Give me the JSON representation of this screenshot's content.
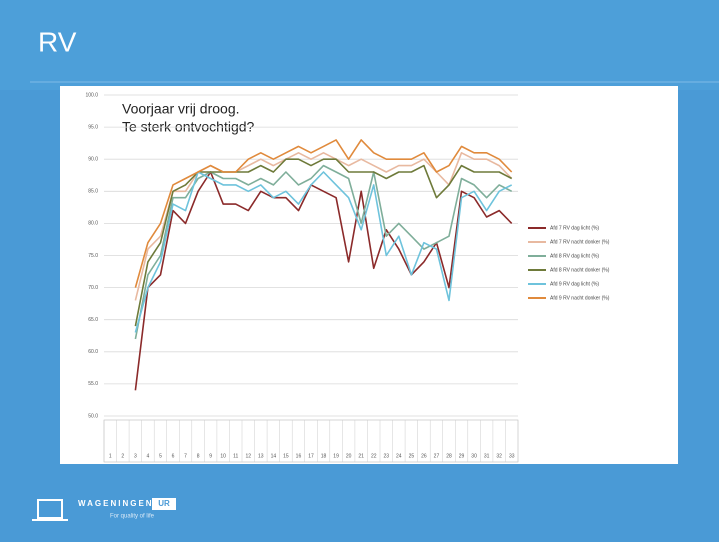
{
  "slide": {
    "title": "RV",
    "logo": "WAGENINGEN",
    "logo_badge": "UR",
    "tagline": "For quality of life"
  },
  "chart_data": {
    "type": "line",
    "annotations": [
      "Voorjaar vrij droog.",
      "Te sterk ontvochtigd?"
    ],
    "categories": [
      "1",
      "2",
      "3",
      "4",
      "5",
      "6",
      "7",
      "8",
      "9",
      "10",
      "11",
      "12",
      "13",
      "14",
      "15",
      "16",
      "17",
      "18",
      "19",
      "20",
      "21",
      "22",
      "23",
      "24",
      "25",
      "26",
      "27",
      "28",
      "29",
      "30",
      "31",
      "32",
      "33"
    ],
    "ylim": [
      50,
      100
    ],
    "yticks": [
      {
        "value": 50,
        "label": "50.0"
      },
      {
        "value": 55,
        "label": "55.0"
      },
      {
        "value": 60,
        "label": "60.0"
      },
      {
        "value": 65,
        "label": "65.0"
      },
      {
        "value": 70,
        "label": "70.0"
      },
      {
        "value": 75,
        "label": "75.0"
      },
      {
        "value": 80,
        "label": "80.0"
      },
      {
        "value": 85,
        "label": "85.0"
      },
      {
        "value": 90,
        "label": "90.0"
      },
      {
        "value": 95,
        "label": "95.0"
      },
      {
        "value": 100,
        "label": "100.0"
      }
    ],
    "grid": true,
    "legend": "right",
    "series": [
      {
        "name": "Afd 7 RV dag licht (%)",
        "color": "#8b2a2a",
        "values": [
          null,
          null,
          54,
          70,
          72,
          82,
          80,
          85,
          88,
          83,
          83,
          82,
          85,
          84,
          84,
          82,
          86,
          85,
          84,
          74,
          85,
          73,
          79,
          76,
          72,
          74,
          77,
          70,
          85,
          84,
          81,
          82,
          80
        ]
      },
      {
        "name": "Afd 7 RV nacht donker (%)",
        "color": "#e8b9a0",
        "values": [
          null,
          null,
          68,
          76,
          78,
          85,
          85,
          88,
          89,
          88,
          88,
          89,
          90,
          89,
          90,
          91,
          90,
          91,
          90,
          89,
          90,
          89,
          88,
          89,
          89,
          90,
          88,
          86,
          91,
          90,
          90,
          89,
          87
        ]
      },
      {
        "name": "Afd 8 RV dag licht (%)",
        "color": "#7fae9a",
        "values": [
          null,
          null,
          62,
          72,
          75,
          84,
          84,
          87,
          88,
          87,
          87,
          86,
          87,
          86,
          88,
          86,
          87,
          89,
          88,
          87,
          80,
          88,
          78,
          80,
          78,
          76,
          77,
          78,
          87,
          86,
          84,
          86,
          85
        ]
      },
      {
        "name": "Afd 8 RV nacht donker (%)",
        "color": "#6e7a3a",
        "values": [
          null,
          null,
          64,
          74,
          77,
          85,
          86,
          88,
          88,
          88,
          88,
          88,
          89,
          88,
          90,
          90,
          89,
          90,
          90,
          88,
          88,
          88,
          87,
          88,
          88,
          89,
          84,
          86,
          89,
          88,
          88,
          88,
          87
        ]
      },
      {
        "name": "Afd 9 RV dag licht (%)",
        "color": "#6ec3dc",
        "values": [
          null,
          null,
          63,
          70,
          74,
          83,
          82,
          88,
          87,
          86,
          86,
          85,
          86,
          84,
          85,
          83,
          86,
          88,
          86,
          84,
          79,
          86,
          75,
          78,
          72,
          77,
          76,
          68,
          84,
          85,
          82,
          85,
          86
        ]
      },
      {
        "name": "Afd 9 RV nacht donker (%)",
        "color": "#e08a3c",
        "values": [
          null,
          null,
          70,
          77,
          80,
          86,
          87,
          88,
          89,
          88,
          88,
          90,
          91,
          90,
          91,
          92,
          91,
          92,
          93,
          90,
          93,
          91,
          90,
          90,
          90,
          91,
          88,
          89,
          92,
          91,
          91,
          90,
          88
        ]
      }
    ]
  }
}
